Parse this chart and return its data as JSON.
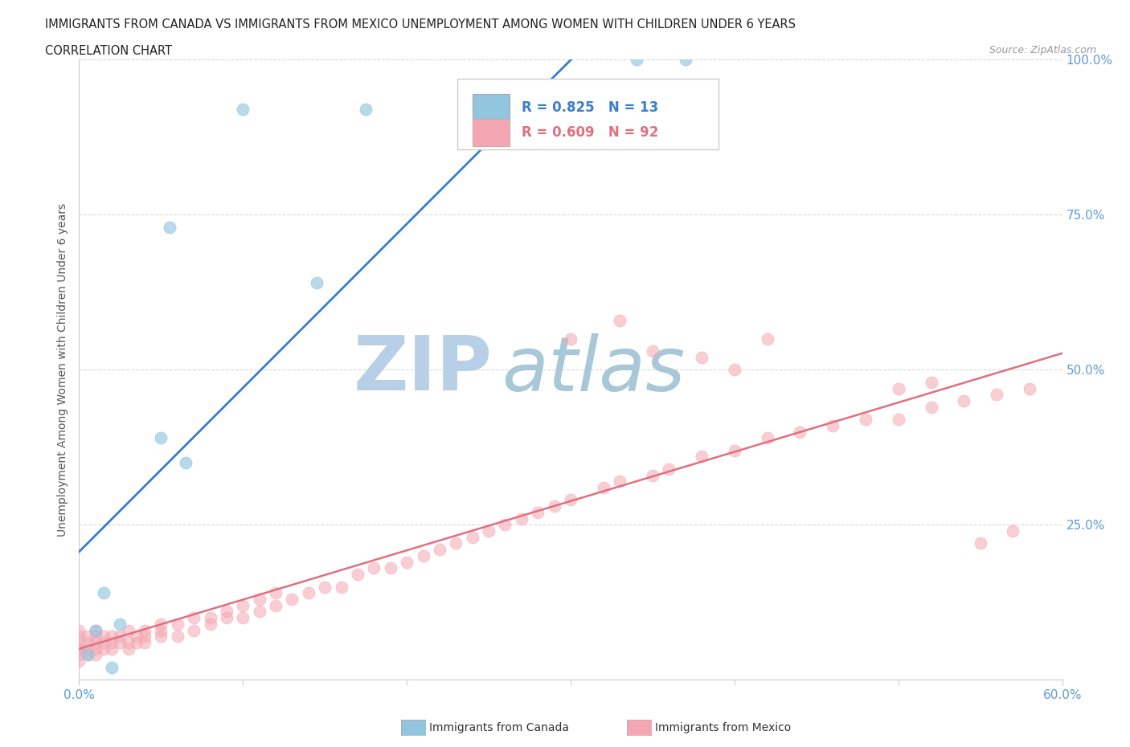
{
  "title_line1": "IMMIGRANTS FROM CANADA VS IMMIGRANTS FROM MEXICO UNEMPLOYMENT AMONG WOMEN WITH CHILDREN UNDER 6 YEARS",
  "title_line2": "CORRELATION CHART",
  "source_text": "Source: ZipAtlas.com",
  "ylabel": "Unemployment Among Women with Children Under 6 years",
  "xlim": [
    0.0,
    0.6
  ],
  "ylim": [
    0.0,
    1.0
  ],
  "legend_r_canada": "R = 0.825",
  "legend_n_canada": "N = 13",
  "legend_r_mexico": "R = 0.609",
  "legend_n_mexico": "N = 92",
  "color_canada": "#92c5de",
  "color_mexico": "#f4a7b2",
  "color_canada_line": "#3a7dc9",
  "color_mexico_line": "#e07080",
  "watermark_zip": "ZIP",
  "watermark_atlas": "atlas",
  "watermark_color_zip": "#b8cfe8",
  "watermark_color_atlas": "#a8c8d8",
  "background_color": "#ffffff",
  "canada_x": [
    0.005,
    0.01,
    0.015,
    0.02,
    0.025,
    0.05,
    0.055,
    0.065,
    0.1,
    0.145,
    0.175,
    0.34,
    0.37
  ],
  "canada_y": [
    0.04,
    0.08,
    0.14,
    0.02,
    0.09,
    0.39,
    0.73,
    0.35,
    0.92,
    0.64,
    0.92,
    1.0,
    1.0
  ],
  "mexico_x": [
    0.0,
    0.0,
    0.0,
    0.0,
    0.0,
    0.0,
    0.0,
    0.005,
    0.005,
    0.005,
    0.005,
    0.01,
    0.01,
    0.01,
    0.01,
    0.01,
    0.015,
    0.015,
    0.015,
    0.02,
    0.02,
    0.02,
    0.025,
    0.025,
    0.03,
    0.03,
    0.03,
    0.035,
    0.035,
    0.04,
    0.04,
    0.04,
    0.05,
    0.05,
    0.05,
    0.06,
    0.06,
    0.07,
    0.07,
    0.08,
    0.08,
    0.09,
    0.09,
    0.1,
    0.1,
    0.11,
    0.11,
    0.12,
    0.12,
    0.13,
    0.14,
    0.15,
    0.16,
    0.17,
    0.18,
    0.19,
    0.2,
    0.21,
    0.22,
    0.23,
    0.24,
    0.25,
    0.26,
    0.27,
    0.28,
    0.29,
    0.3,
    0.32,
    0.33,
    0.35,
    0.36,
    0.38,
    0.4,
    0.42,
    0.44,
    0.46,
    0.48,
    0.5,
    0.52,
    0.54,
    0.56,
    0.58,
    0.3,
    0.33,
    0.35,
    0.38,
    0.4,
    0.42,
    0.5,
    0.52,
    0.55,
    0.57
  ],
  "mexico_y": [
    0.03,
    0.04,
    0.05,
    0.05,
    0.06,
    0.07,
    0.08,
    0.04,
    0.05,
    0.06,
    0.07,
    0.04,
    0.05,
    0.06,
    0.07,
    0.08,
    0.05,
    0.06,
    0.07,
    0.05,
    0.06,
    0.07,
    0.06,
    0.07,
    0.05,
    0.06,
    0.08,
    0.06,
    0.07,
    0.06,
    0.07,
    0.08,
    0.07,
    0.08,
    0.09,
    0.07,
    0.09,
    0.08,
    0.1,
    0.09,
    0.1,
    0.1,
    0.11,
    0.1,
    0.12,
    0.11,
    0.13,
    0.12,
    0.14,
    0.13,
    0.14,
    0.15,
    0.15,
    0.17,
    0.18,
    0.18,
    0.19,
    0.2,
    0.21,
    0.22,
    0.23,
    0.24,
    0.25,
    0.26,
    0.27,
    0.28,
    0.29,
    0.31,
    0.32,
    0.33,
    0.34,
    0.36,
    0.37,
    0.39,
    0.4,
    0.41,
    0.42,
    0.42,
    0.44,
    0.45,
    0.46,
    0.47,
    0.55,
    0.58,
    0.53,
    0.52,
    0.5,
    0.55,
    0.47,
    0.48,
    0.22,
    0.24
  ],
  "grid_color": "#d8d8d8",
  "tick_color": "#5b9bd5"
}
